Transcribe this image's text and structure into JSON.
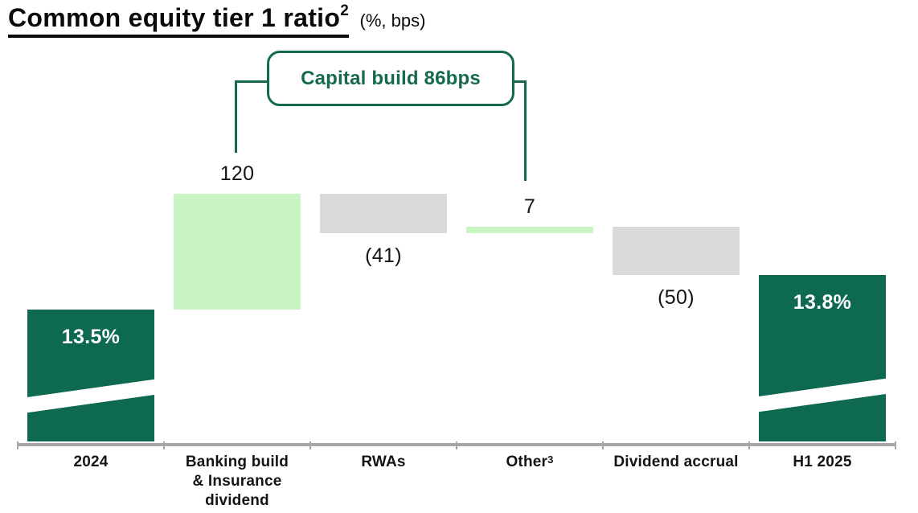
{
  "header": {
    "title": "Common equity tier 1 ratio",
    "title_footnote": "2",
    "units": "(%, bps)"
  },
  "callout": {
    "label": "Capital build 86bps"
  },
  "colors": {
    "dark_green": "#0d6950",
    "light_green": "#c9f5c4",
    "gray": "#d9d9d9",
    "axis_gray": "#a6a6a6",
    "callout_green": "#15694e",
    "text_dark": "#141414",
    "bar_text_white": "#ffffff"
  },
  "chart_data": {
    "type": "waterfall",
    "title": "Common equity tier 1 ratio",
    "units": "%, bps",
    "legend": "none",
    "grid": false,
    "categories": [
      "2024",
      "Banking build & Insurance dividend",
      "RWAs",
      "Other",
      "Dividend accrual",
      "H1 2025"
    ],
    "columns": [
      {
        "label": "2024",
        "kind": "total",
        "value_pct": 13.5,
        "display": "13.5%",
        "color": "dark_green",
        "break_slash": true
      },
      {
        "label": "Banking build\n& Insurance\ndividend",
        "kind": "delta",
        "value_bps": 120,
        "display": "120",
        "color": "light_green"
      },
      {
        "label": "RWAs",
        "kind": "delta",
        "value_bps": -41,
        "display": "(41)",
        "color": "gray"
      },
      {
        "label": "Other",
        "label_sup": "3",
        "kind": "delta",
        "value_bps": 7,
        "display": "7",
        "color": "light_green"
      },
      {
        "label": "Dividend accrual",
        "kind": "delta",
        "value_bps": -50,
        "display": "(50)",
        "color": "gray"
      },
      {
        "label": "H1 2025",
        "kind": "total",
        "value_pct": 13.8,
        "display": "13.8%",
        "color": "dark_green",
        "break_slash": true
      }
    ],
    "annotation": {
      "text": "Capital build 86bps",
      "spans_columns": [
        "Banking build & Insurance dividend",
        "Other"
      ]
    }
  }
}
